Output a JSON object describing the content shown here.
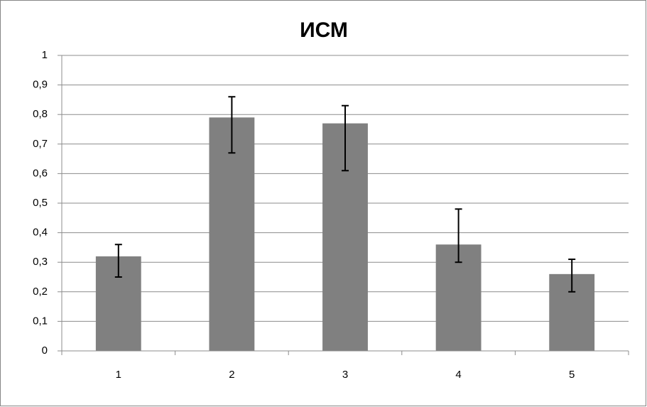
{
  "chart_data": {
    "type": "bar",
    "title": "ИСМ",
    "categories": [
      "1",
      "2",
      "3",
      "4",
      "5"
    ],
    "values": [
      0.32,
      0.79,
      0.77,
      0.36,
      0.26
    ],
    "errors_minus": [
      0.07,
      0.12,
      0.16,
      0.06,
      0.06
    ],
    "errors_plus": [
      0.04,
      0.07,
      0.06,
      0.12,
      0.05
    ],
    "color": "#808080",
    "ylim": [
      0,
      1
    ],
    "yticks": [
      0,
      {
        "value": 0.1,
        "label": "0,1"
      },
      {
        "value": 0.2,
        "label": "0,2"
      },
      {
        "value": 0.3,
        "label": "0,3"
      },
      {
        "value": 0.4,
        "label": "0,4"
      },
      {
        "value": 0.5,
        "label": "0,5"
      },
      {
        "value": 0.6,
        "label": "0,6"
      },
      {
        "value": 0.7,
        "label": "0,7"
      },
      {
        "value": 0.8,
        "label": "0,8"
      },
      {
        "value": 0.9,
        "label": "0,9"
      },
      1
    ],
    "grid": true
  }
}
